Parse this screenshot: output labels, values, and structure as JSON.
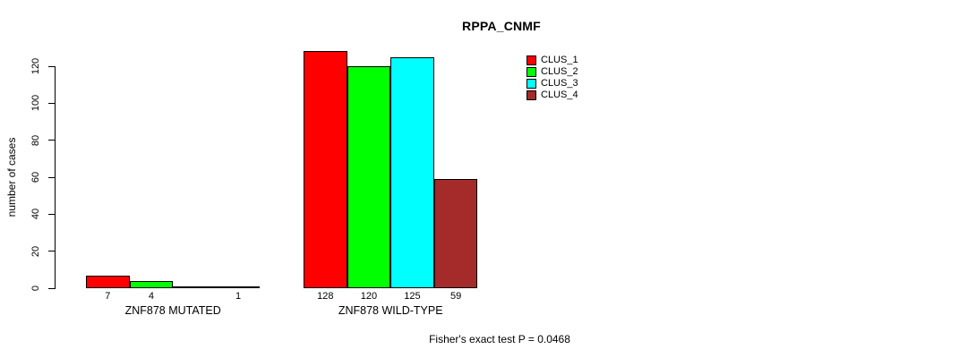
{
  "chart_data": {
    "type": "bar",
    "title": "RPPA_CNMF",
    "xlabel": "",
    "ylabel": "number of cases",
    "ylim": [
      0,
      130
    ],
    "yticks": [
      0,
      20,
      40,
      60,
      80,
      100,
      120
    ],
    "grid": false,
    "legend_position": "top-right",
    "series": [
      {
        "name": "CLUS_1",
        "color": "#ff0000"
      },
      {
        "name": "CLUS_2",
        "color": "#00ff00"
      },
      {
        "name": "CLUS_3",
        "color": "#00ffff"
      },
      {
        "name": "CLUS_4",
        "color": "#a52a2a"
      }
    ],
    "groups": [
      {
        "label": "ZNF878 MUTATED",
        "values": [
          7,
          4,
          0,
          1
        ],
        "bar_labels": [
          "7",
          "4",
          "",
          "1"
        ]
      },
      {
        "label": "ZNF878 WILD-TYPE",
        "values": [
          128,
          120,
          125,
          59
        ],
        "bar_labels": [
          "128",
          "120",
          "125",
          "59"
        ]
      }
    ],
    "annotation": "Fisher's exact test P = 0.0468"
  }
}
